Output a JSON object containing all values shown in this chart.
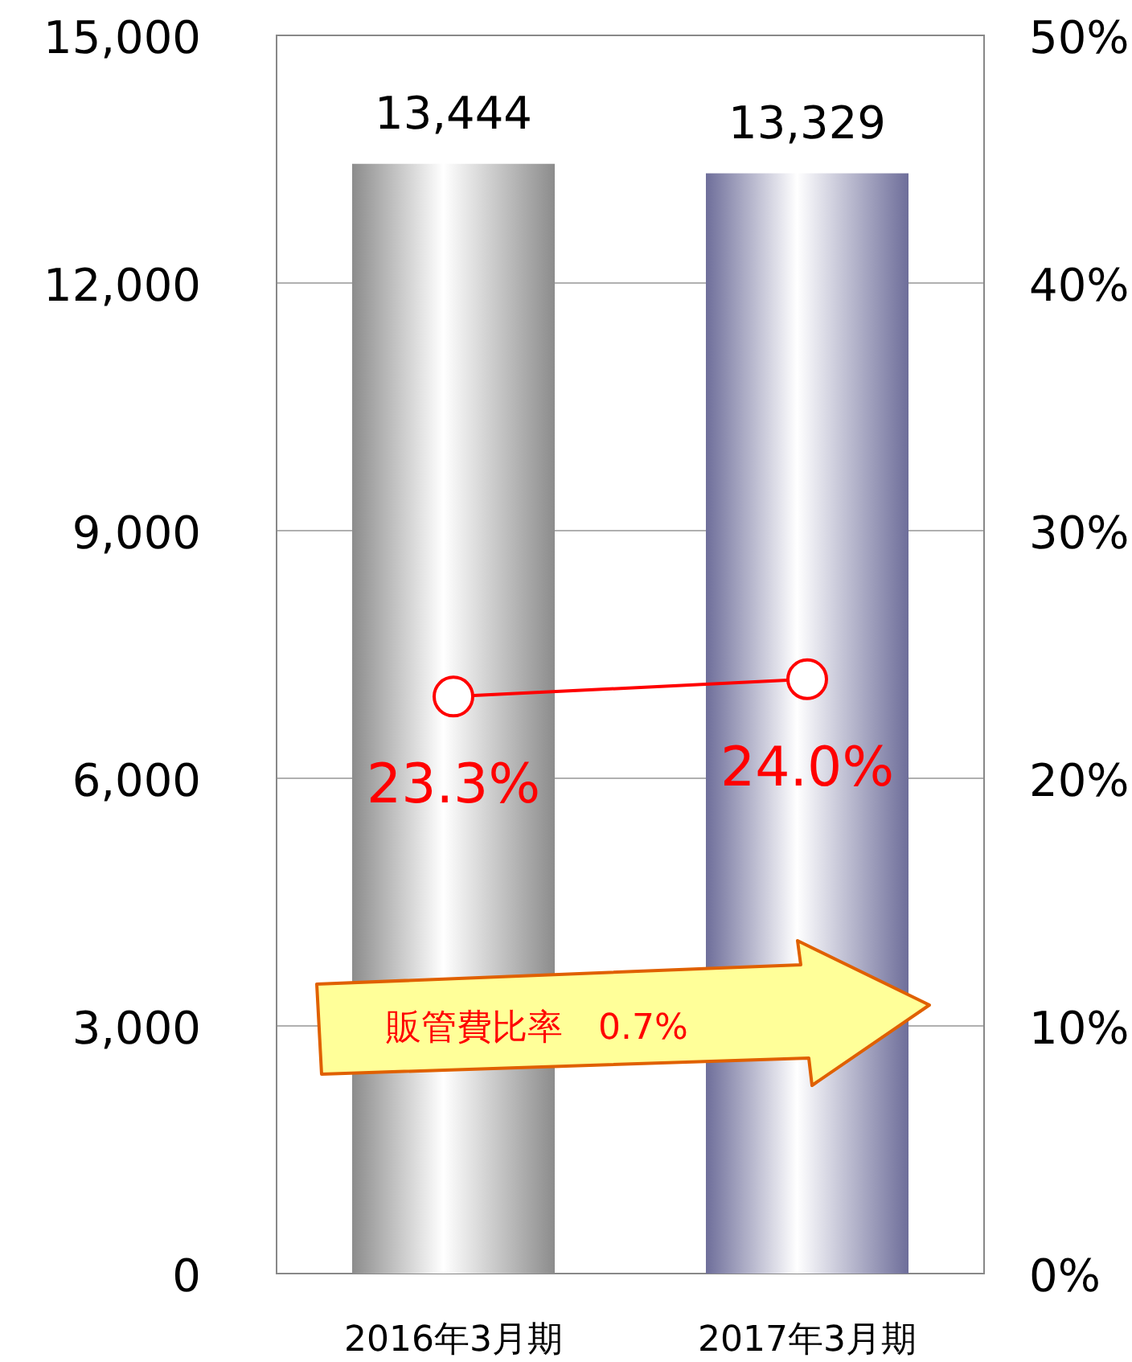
{
  "chart_data": {
    "type": "bar",
    "categories": [
      "2016年3月期",
      "2017年3月期"
    ],
    "series": [
      {
        "colors": [
          "#8c8c8c",
          "#6e6e9a"
        ],
        "values": [
          13444,
          13329
        ],
        "value_labels": [
          "13,444",
          "13,329"
        ]
      },
      {
        "type": "line",
        "axis": "y2",
        "color": "#ff0000",
        "values": [
          23.3,
          24.0
        ],
        "value_labels": [
          "23.3%",
          "24.0%"
        ],
        "marker": "circle"
      }
    ],
    "ylim": [
      0,
      15000
    ],
    "yticks": [
      0,
      {
        "value": 3000,
        "label": "3,000"
      },
      {
        "value": 6000,
        "label": "6,000"
      },
      {
        "value": 9000,
        "label": "9,000"
      },
      {
        "value": 12000,
        "label": "12,000"
      },
      {
        "value": 15000,
        "label": "15,000"
      }
    ],
    "y2lim": [
      0,
      50
    ],
    "y2ticks": [
      {
        "value": 0,
        "label": "0%"
      },
      {
        "value": 10,
        "label": "10%"
      },
      {
        "value": 20,
        "label": "20%"
      },
      {
        "value": 30,
        "label": "30%"
      },
      {
        "value": 40,
        "label": "40%"
      },
      {
        "value": 50,
        "label": "50%"
      }
    ],
    "grid": "y",
    "annotations": [
      "販管費比率　0.7%"
    ]
  }
}
